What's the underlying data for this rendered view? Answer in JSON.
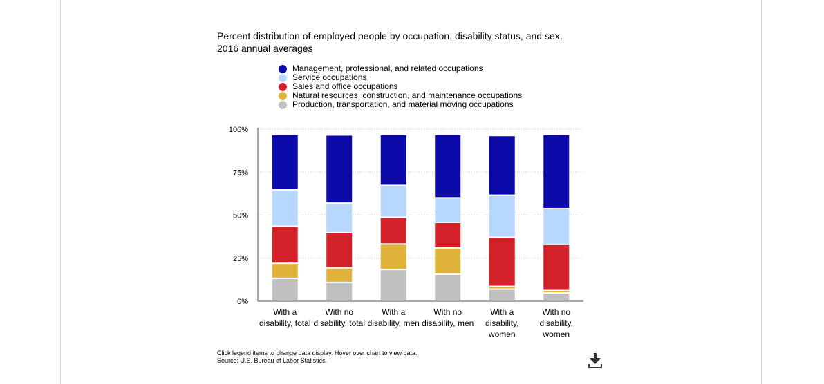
{
  "chart_data": {
    "type": "bar",
    "stacked": true,
    "title_lines": [
      "Percent distribution of employed people by occupation, disability status, and sex,",
      "2016 annual averages"
    ],
    "categories": [
      [
        "With a",
        "disability, total"
      ],
      [
        "With no",
        "disability, total"
      ],
      [
        "With a",
        "disability, men"
      ],
      [
        "With no",
        "disability, men"
      ],
      [
        "With a",
        "disability,",
        "women"
      ],
      [
        "With no",
        "disability,",
        "women"
      ]
    ],
    "series": [
      {
        "name": "Production, transportation, and material moving occupations",
        "color": "#c0c0c0",
        "values": [
          13.3,
          10.9,
          18.4,
          15.7,
          7.0,
          4.8
        ]
      },
      {
        "name": "Natural resources, construction, and maintenance occupations",
        "color": "#dfb33a",
        "values": [
          8.7,
          8.5,
          14.8,
          15.3,
          1.6,
          1.4
        ]
      },
      {
        "name": "Sales and office occupations",
        "color": "#d3222a",
        "values": [
          21.6,
          20.4,
          15.6,
          14.8,
          28.6,
          26.8
        ]
      },
      {
        "name": "Service occupations",
        "color": "#b7d7fe",
        "values": [
          21.2,
          17.2,
          18.5,
          14.3,
          24.4,
          20.8
        ]
      },
      {
        "name": "Management, professional, and related occupations",
        "color": "#0c0aa9",
        "values": [
          32.1,
          39.6,
          29.6,
          36.8,
          34.7,
          43.1
        ]
      }
    ],
    "legend_order": [
      4,
      3,
      2,
      1,
      0
    ],
    "y_ticks": [
      "0%",
      "25%",
      "50%",
      "75%",
      "100%"
    ],
    "y_tick_values": [
      0,
      25,
      50,
      75,
      100
    ],
    "ylim": [
      0,
      100
    ],
    "grid": true,
    "legend_position": "top"
  },
  "footer": {
    "note": "Click legend items to change data display. Hover over chart to view data.",
    "source": "Source: U.S. Bureau of Labor Statistics."
  },
  "icons": {
    "download": "download-icon"
  }
}
